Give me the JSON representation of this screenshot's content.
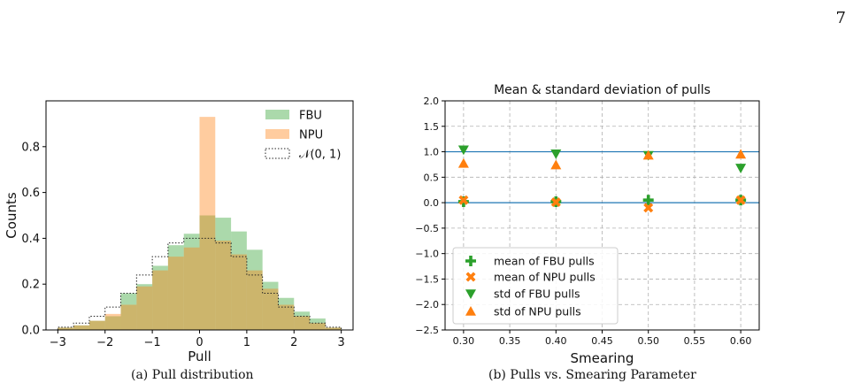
{
  "page_number": "7",
  "captions": {
    "a": "(a) Pull distribution",
    "b": "(b) Pulls vs. Smearing Parameter"
  },
  "chart_data": [
    {
      "type": "bar",
      "title": "",
      "xlabel": "Pull",
      "ylabel": "Counts",
      "xlim": [
        -3.25,
        3.25
      ],
      "ylim": [
        0,
        1.0
      ],
      "xticks": [
        "-3",
        "-2",
        "-1",
        "0",
        "1",
        "2",
        "3"
      ],
      "xtick_values": [
        -3,
        -2,
        -1,
        0,
        1,
        2,
        3
      ],
      "yticks": [
        "0.0",
        "0.2",
        "0.4",
        "0.6",
        "0.8"
      ],
      "ytick_values": [
        0,
        0.2,
        0.4,
        0.6,
        0.8
      ],
      "bin_edges": [
        -3.0,
        -2.667,
        -2.333,
        -2.0,
        -1.667,
        -1.333,
        -1.0,
        -0.667,
        -0.333,
        0.0,
        0.333,
        0.667,
        1.0,
        1.333,
        1.667,
        2.0,
        2.333,
        2.667,
        3.0
      ],
      "legend_position": "top-right",
      "series": [
        {
          "name": "FBU",
          "style": "filled",
          "color": "#2ca02c",
          "opacity": 0.4,
          "values": [
            0.01,
            0.02,
            0.04,
            0.06,
            0.16,
            0.2,
            0.28,
            0.37,
            0.42,
            0.5,
            0.49,
            0.43,
            0.35,
            0.21,
            0.14,
            0.08,
            0.05,
            0.01
          ]
        },
        {
          "name": "NPU",
          "style": "filled",
          "color": "#ff7f0e",
          "opacity": 0.4,
          "values": [
            0.01,
            0.02,
            0.04,
            0.07,
            0.11,
            0.19,
            0.26,
            0.32,
            0.36,
            0.93,
            0.39,
            0.33,
            0.26,
            0.18,
            0.11,
            0.06,
            0.03,
            0.01
          ]
        },
        {
          "name": "𝒩(0,  1)",
          "style": "step-dotted",
          "color": "#222222",
          "values": [
            0.012,
            0.03,
            0.06,
            0.1,
            0.16,
            0.24,
            0.32,
            0.38,
            0.4,
            0.4,
            0.38,
            0.32,
            0.24,
            0.16,
            0.1,
            0.06,
            0.03,
            0.012
          ]
        }
      ]
    },
    {
      "type": "scatter",
      "title": "Mean & standard deviation of pulls",
      "xlabel": "Smearing",
      "ylabel": "",
      "xlim": [
        0.28,
        0.62
      ],
      "ylim": [
        -2.5,
        2.0
      ],
      "grid": true,
      "xticks": [
        "0.30",
        "0.35",
        "0.40",
        "0.45",
        "0.50",
        "0.55",
        "0.60"
      ],
      "xtick_values": [
        0.3,
        0.35,
        0.4,
        0.45,
        0.5,
        0.55,
        0.6
      ],
      "yticks": [
        "2.0",
        "1.5",
        "1.0",
        "0.5",
        "0.0",
        "−0.5",
        "−1.0",
        "−1.5",
        "−2.0",
        "−2.5"
      ],
      "ytick_values": [
        2.0,
        1.5,
        1.0,
        0.5,
        0.0,
        -0.5,
        -1.0,
        -1.5,
        -2.0,
        -2.5
      ],
      "reference_lines": [
        1.0,
        0.0
      ],
      "legend_position": "lower-left",
      "series": [
        {
          "name": "mean of FBU pulls",
          "marker": "plus",
          "color": "#2ca02c",
          "x": [
            0.3,
            0.4,
            0.5,
            0.6
          ],
          "y": [
            0.02,
            0.02,
            0.05,
            0.05
          ]
        },
        {
          "name": "mean of NPU pulls",
          "marker": "x",
          "color": "#ff7f0e",
          "x": [
            0.3,
            0.4,
            0.5,
            0.6
          ],
          "y": [
            0.05,
            0.01,
            -0.1,
            0.05
          ]
        },
        {
          "name": "std of FBU pulls",
          "marker": "triangle-down",
          "color": "#2ca02c",
          "x": [
            0.3,
            0.4,
            0.5,
            0.6
          ],
          "y": [
            1.04,
            0.96,
            0.93,
            0.68
          ]
        },
        {
          "name": "std of NPU pulls",
          "marker": "triangle-up",
          "color": "#ff7f0e",
          "x": [
            0.3,
            0.4,
            0.5,
            0.6
          ],
          "y": [
            0.77,
            0.74,
            0.93,
            0.95
          ]
        }
      ]
    }
  ]
}
